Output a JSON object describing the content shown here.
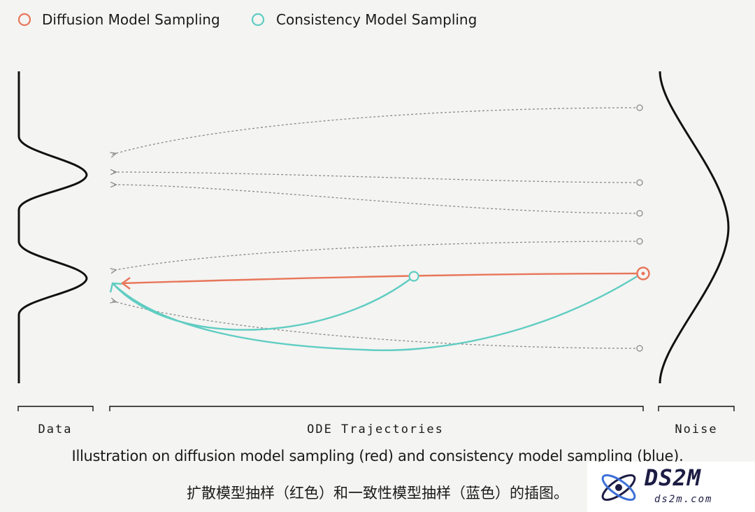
{
  "legend": {
    "diffusion_label": "Diffusion Model Sampling",
    "consistency_label": "Consistency Model Sampling"
  },
  "axis_labels": {
    "data": "Data",
    "ode": "ODE Trajectories",
    "noise": "Noise"
  },
  "caption": {
    "english": "Illustration on diffusion model sampling (red) and consistency model sampling (blue).",
    "chinese": "扩散模型抽样（红色）和一致性模型抽样（蓝色）的插图。"
  },
  "colors": {
    "diffusion": "#e8765a",
    "consistency": "#5fcdc2",
    "trajectory": "#8a8a8a",
    "ink": "#111111"
  },
  "watermark": {
    "brand": "DS2M",
    "url": "ds2m.com"
  }
}
